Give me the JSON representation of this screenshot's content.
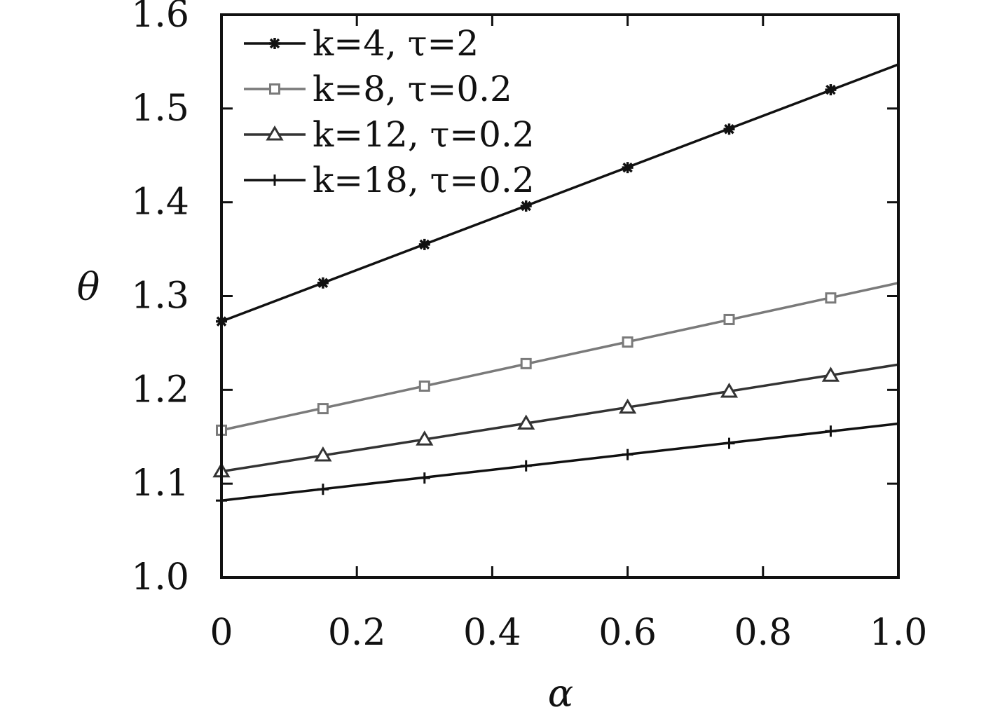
{
  "chart_data": {
    "type": "line",
    "xlabel": "α",
    "ylabel": "θ",
    "xlim": [
      0,
      1.0
    ],
    "ylim": [
      1.0,
      1.6
    ],
    "x_ticks": [
      0,
      0.2,
      0.4,
      0.6,
      0.8,
      1.0
    ],
    "x_tick_labels": [
      "0",
      "0.2",
      "0.4",
      "0.6",
      "0.8",
      "1.0"
    ],
    "y_ticks": [
      1.0,
      1.1,
      1.2,
      1.3,
      1.4,
      1.5,
      1.6
    ],
    "y_tick_labels": [
      "1.0",
      "1.1",
      "1.2",
      "1.3",
      "1.4",
      "1.5",
      "1.6"
    ],
    "grid": false,
    "legend_position": "top-left",
    "line_x": [
      0,
      1.0
    ],
    "marker_x": [
      0,
      0.15,
      0.3,
      0.45,
      0.6,
      0.75,
      0.9
    ],
    "series": [
      {
        "name": "k=4, τ=2",
        "color": "#111111",
        "marker": "asterisk",
        "line_y": [
          1.273,
          1.547
        ],
        "values": [
          1.273,
          1.314,
          1.355,
          1.396,
          1.437,
          1.478,
          1.52
        ]
      },
      {
        "name": "k=8, τ=0.2",
        "color": "#7a7a7a",
        "marker": "square",
        "line_y": [
          1.157,
          1.314
        ],
        "values": [
          1.157,
          1.18,
          1.204,
          1.228,
          1.251,
          1.275,
          1.298
        ]
      },
      {
        "name": "k=12, τ=0.2",
        "color": "#333333",
        "marker": "triangle",
        "line_y": [
          1.113,
          1.227
        ],
        "values": [
          1.113,
          1.13,
          1.147,
          1.164,
          1.181,
          1.198,
          1.215
        ]
      },
      {
        "name": "k=18, τ=0.2",
        "color": "#111111",
        "marker": "plus",
        "line_y": [
          1.082,
          1.164
        ],
        "values": [
          1.082,
          1.094,
          1.106,
          1.119,
          1.131,
          1.143,
          1.156
        ]
      }
    ]
  }
}
